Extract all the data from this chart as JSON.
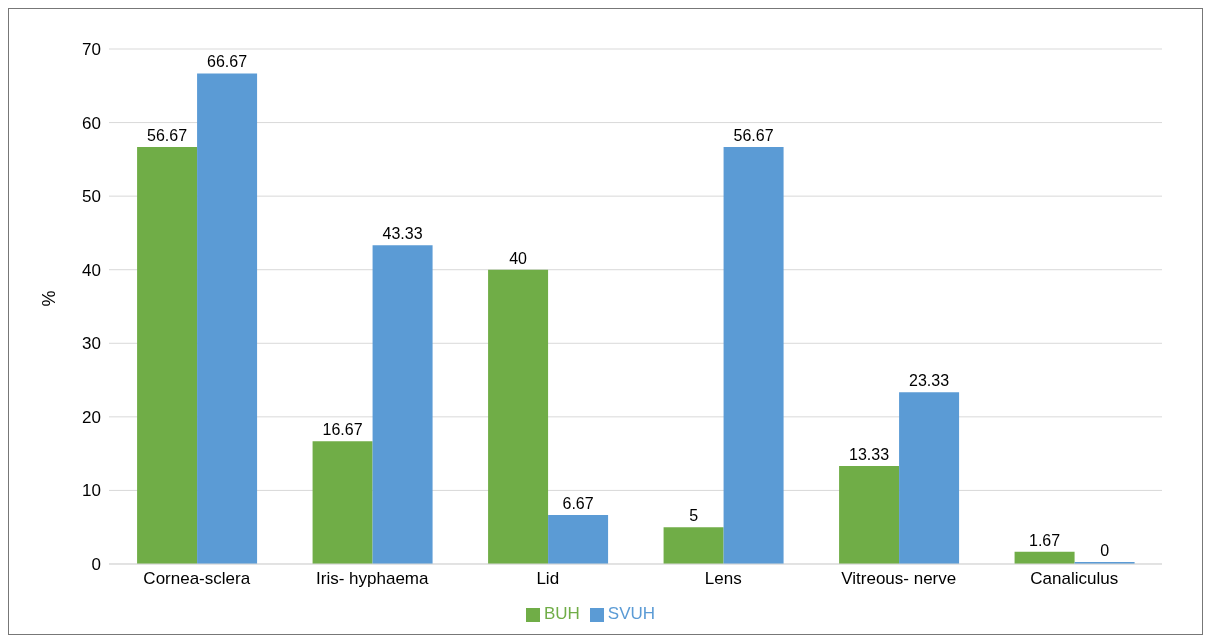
{
  "chart_data": {
    "type": "bar",
    "ylabel": "%",
    "categories": [
      "Cornea-sclera",
      "Iris- hyphaema",
      "Lid",
      "Lens",
      "Vitreous- nerve",
      "Canaliculus"
    ],
    "series": [
      {
        "name": "BUH",
        "color": "#70ad47",
        "values": [
          56.67,
          16.67,
          40,
          5,
          13.33,
          1.67
        ]
      },
      {
        "name": "SVUH",
        "color": "#5b9bd5",
        "values": [
          66.67,
          43.33,
          6.67,
          56.67,
          23.33,
          0
        ]
      }
    ],
    "ylim": [
      0,
      70
    ],
    "yticks": [
      0,
      10,
      20,
      30,
      40,
      50,
      60,
      70
    ],
    "grid": "y",
    "legend": "bottom",
    "data_labels": true
  }
}
